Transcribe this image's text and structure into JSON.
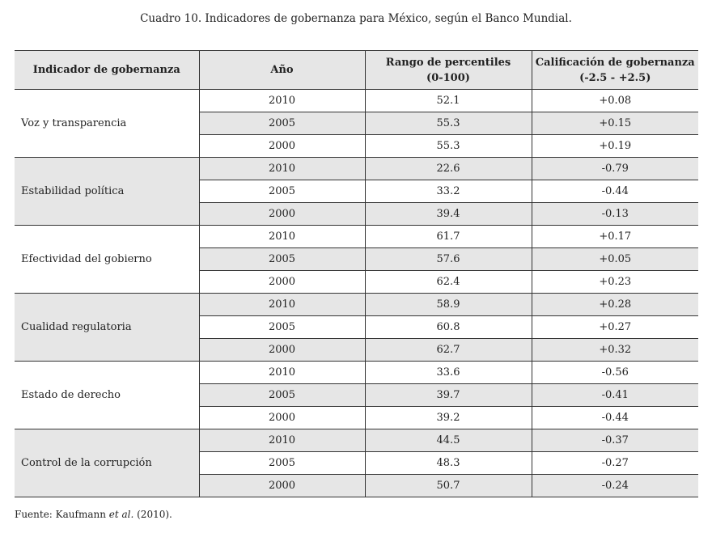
{
  "title": "Cuadro 10. Indicadores de gobernanza para México, según el Banco Mundial.",
  "headers": [
    "Indicador de gobernanza",
    "Año",
    "Rango de percentiles",
    "(0-100)",
    "Calificación de gobernanza",
    "(-2.5 - +2.5)"
  ],
  "groups": [
    {
      "label": "Voz y transparencia",
      "rows": [
        [
          "2010",
          "52.1",
          "+0.08"
        ],
        [
          "2005",
          "55.3",
          "+0.15"
        ],
        [
          "2000",
          "55.3",
          "+0.19"
        ]
      ]
    },
    {
      "label": "Estabilidad política",
      "rows": [
        [
          "2010",
          "22.6",
          "-0.79"
        ],
        [
          "2005",
          "33.2",
          "-0.44"
        ],
        [
          "2000",
          "39.4",
          "-0.13"
        ]
      ]
    },
    {
      "label": "Efectividad del gobierno",
      "rows": [
        [
          "2010",
          "61.7",
          "+0.17"
        ],
        [
          "2005",
          "57.6",
          "+0.05"
        ],
        [
          "2000",
          "62.4",
          "+0.23"
        ]
      ]
    },
    {
      "label": "Cualidad regulatoria",
      "rows": [
        [
          "2010",
          "58.9",
          "+0.28"
        ],
        [
          "2005",
          "60.8",
          "+0.27"
        ],
        [
          "2000",
          "62.7",
          "+0.32"
        ]
      ]
    },
    {
      "label": "Estado de derecho",
      "rows": [
        [
          "2010",
          "33.6",
          "-0.56"
        ],
        [
          "2005",
          "39.7",
          "-0.41"
        ],
        [
          "2000",
          "39.2",
          "-0.44"
        ]
      ]
    },
    {
      "label": "Control de la corrupción",
      "rows": [
        [
          "2010",
          "44.5",
          "-0.37"
        ],
        [
          "2005",
          "48.3",
          "-0.27"
        ],
        [
          "2000",
          "50.7",
          "-0.24"
        ]
      ]
    }
  ],
  "source": {
    "prefix": "Fuente: Kaufmann ",
    "italic": "et al.",
    "suffix": " (2010)."
  }
}
